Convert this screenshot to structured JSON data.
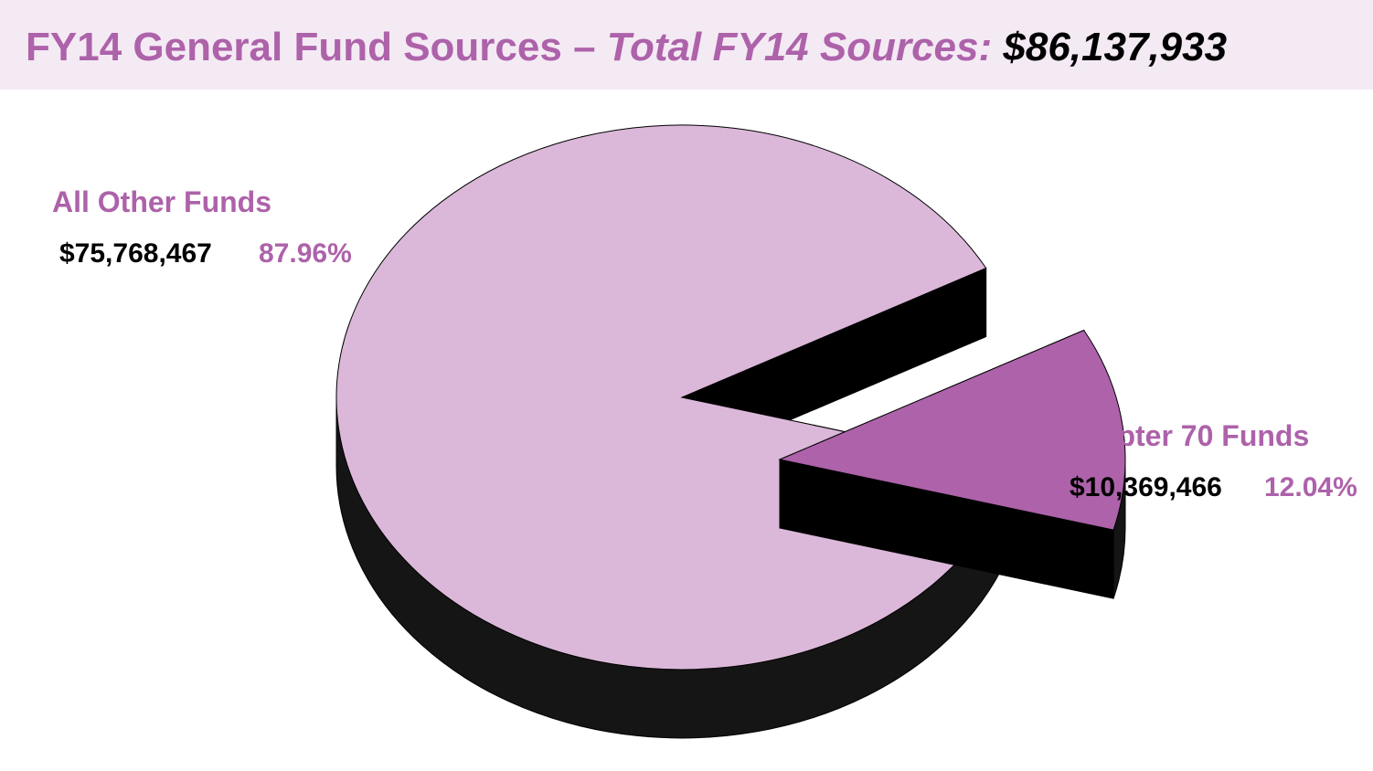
{
  "chart_data": {
    "type": "pie",
    "title": "FY14 General Fund Sources –",
    "subtitle": "Total FY14 Sources:",
    "total_label": "$86,137,933",
    "categories": [
      "All Other Funds",
      "Chapter 70 Funds"
    ],
    "values": [
      87.96,
      12.04
    ],
    "value_labels": [
      "87.96%",
      "12.04%"
    ],
    "dollar_labels": [
      "$75,768,467",
      "$10,369,466"
    ],
    "colors": [
      "#dbb8d9",
      "#ad62aa"
    ],
    "exploded": [
      false,
      true
    ]
  }
}
